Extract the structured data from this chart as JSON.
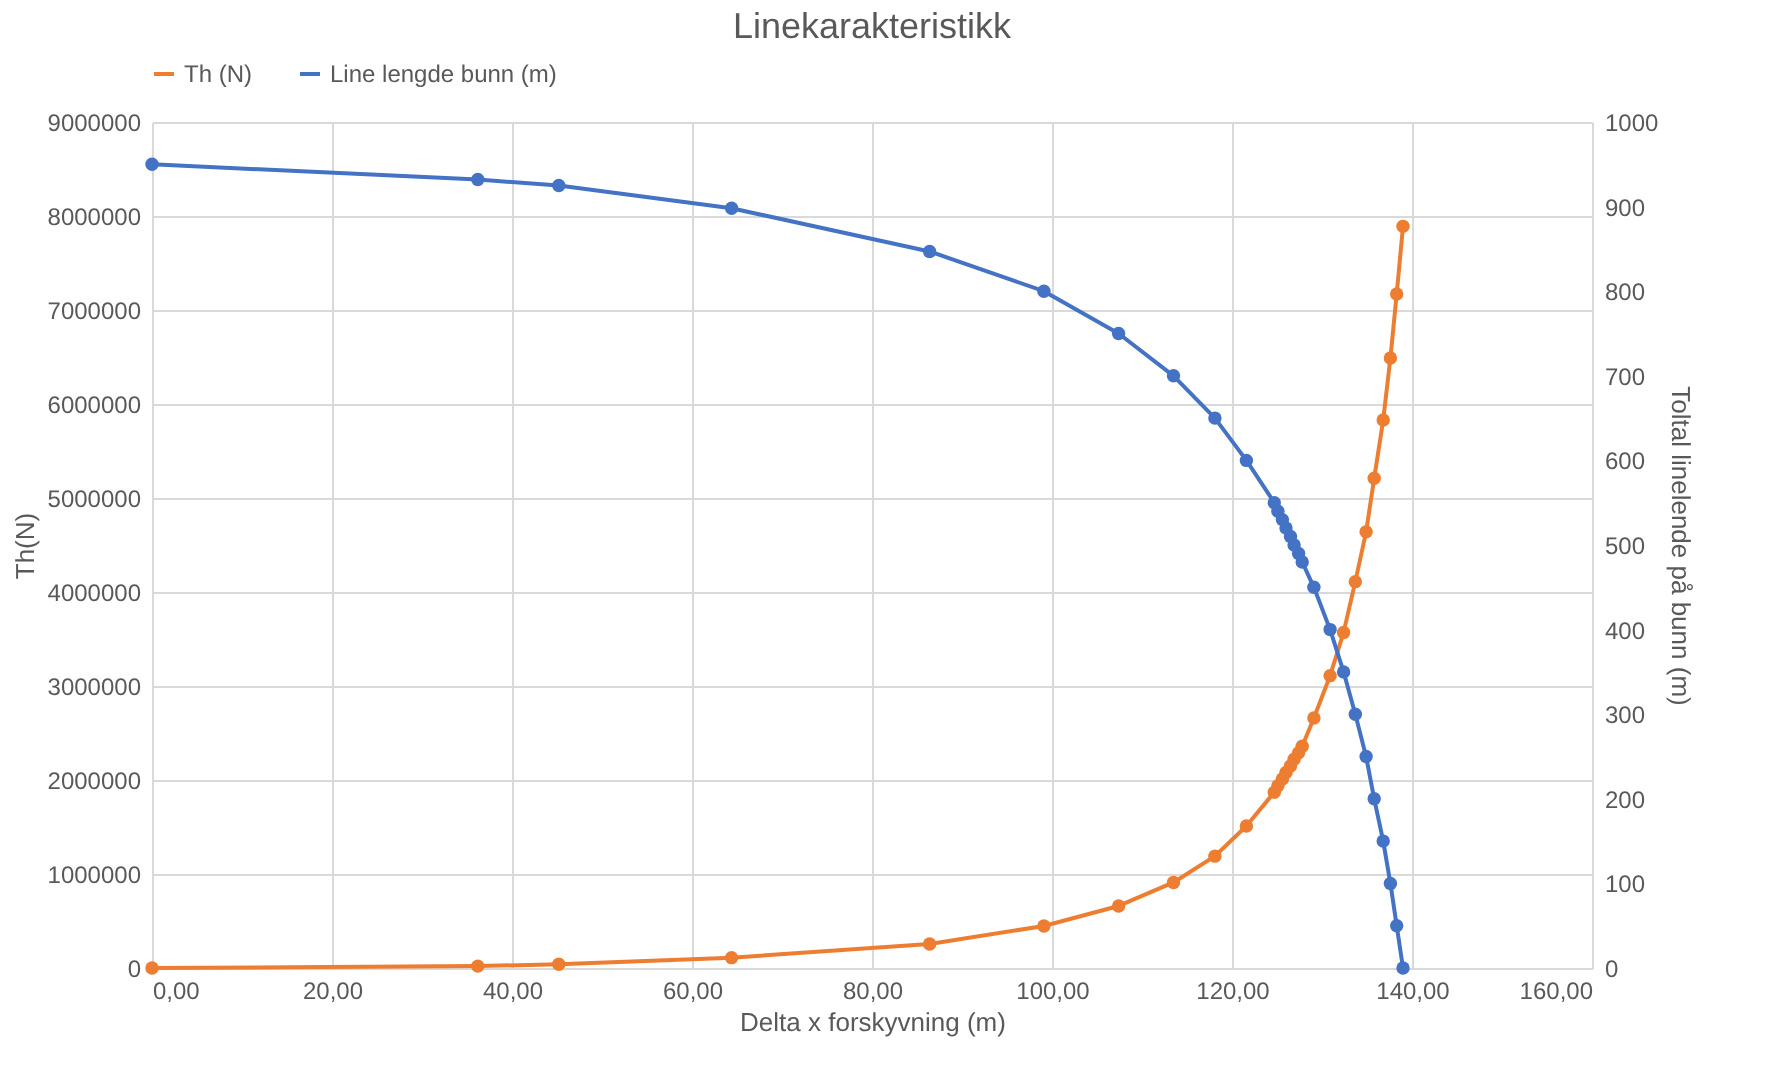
{
  "chart_data": {
    "type": "line",
    "title": "Linekarakteristikk",
    "xlabel": "Delta x forskyvning (m)",
    "ylabel": "Th(N)",
    "y2label": "Toltal linelende på bunn (m)",
    "x": [
      0,
      36.2,
      45.2,
      64.4,
      86.4,
      99.1,
      107.4,
      113.5,
      118.1,
      121.6,
      124.7,
      125.1,
      125.6,
      126.0,
      126.5,
      126.9,
      127.4,
      127.8,
      129.1,
      130.9,
      132.4,
      133.7,
      134.9,
      135.8,
      136.8,
      137.6,
      138.3,
      139.0
    ],
    "series": [
      {
        "name": "Th (N)",
        "color": "#ed7d31",
        "values": [
          0,
          20000,
          40000,
          110000,
          255000,
          447000,
          660000,
          910000,
          1190000,
          1510000,
          1870000,
          1940000,
          2010000,
          2080000,
          2150000,
          2220000,
          2290000,
          2360000,
          2660000,
          3110000,
          3570000,
          4110000,
          4640000,
          5210000,
          5830000,
          6490000,
          7170000,
          7890000
        ]
      },
      {
        "name": "Line lengde bunn (m)",
        "color": "#4472c4",
        "axis": "y2",
        "values": [
          950,
          932,
          925,
          898,
          847,
          800,
          750,
          700,
          650,
          600,
          550,
          540,
          530,
          520,
          510,
          500,
          490,
          480,
          450,
          400,
          350,
          300,
          250,
          200,
          150,
          100,
          50,
          0
        ]
      }
    ],
    "xlim": [
      0,
      160
    ],
    "xticks": [
      {
        "value": 0,
        "label": "0,00"
      },
      {
        "value": 20,
        "label": "20,00"
      },
      {
        "value": 40,
        "label": "40,00"
      },
      {
        "value": 60,
        "label": "60,00"
      },
      {
        "value": 80,
        "label": "80,00"
      },
      {
        "value": 100,
        "label": "100,00"
      },
      {
        "value": 120,
        "label": "120,00"
      },
      {
        "value": 140,
        "label": "140,00"
      },
      {
        "value": 160,
        "label": "160,00"
      }
    ],
    "ylim": [
      0,
      9000000
    ],
    "yticks": [
      0,
      1000000,
      2000000,
      3000000,
      4000000,
      5000000,
      6000000,
      7000000,
      8000000,
      9000000
    ],
    "y2lim": [
      0,
      1000
    ],
    "y2ticks": [
      0,
      100,
      200,
      300,
      400,
      500,
      600,
      700,
      800,
      900,
      1000
    ],
    "grid": true,
    "legend": "top",
    "marker": "circle",
    "line_style": "solid"
  }
}
